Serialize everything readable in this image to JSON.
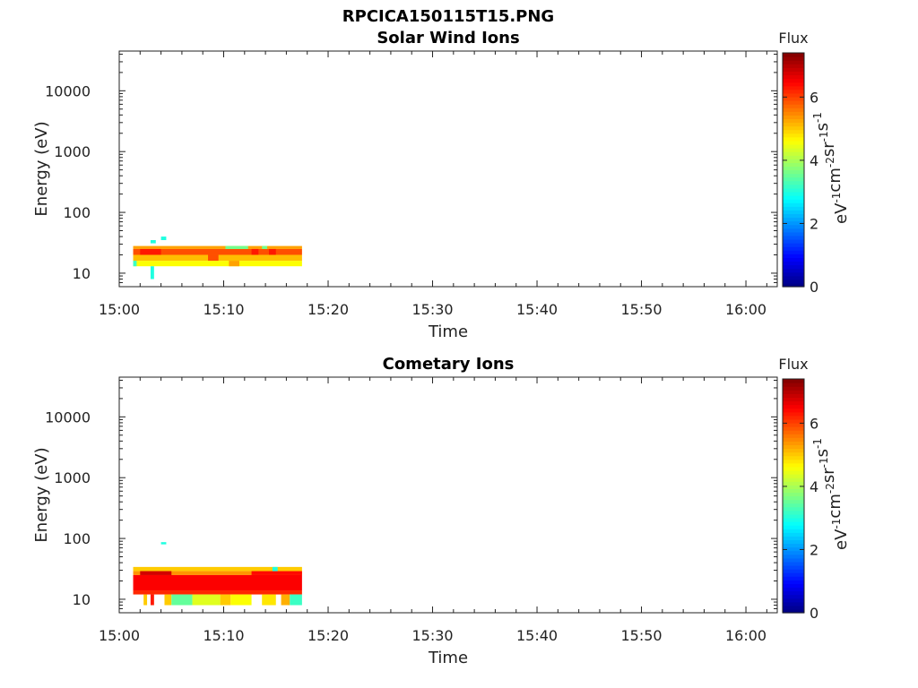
{
  "page_title": "RPCICA150115T15.PNG",
  "colorbar": {
    "title": "Flux",
    "label_parts": [
      "eV",
      "-1",
      "cm",
      "-2",
      "sr",
      "-1",
      "s",
      "-1"
    ],
    "ticks": [
      0,
      2,
      4,
      6
    ],
    "range": [
      0,
      7.4
    ],
    "colormap": "jet"
  },
  "chart_data": [
    {
      "type": "heatmap",
      "title": "Solar Wind Ions",
      "xlabel": "Time",
      "ylabel": "Energy (eV)",
      "xticks": [
        "15:00",
        "15:10",
        "15:20",
        "15:30",
        "15:40",
        "15:50",
        "16:00"
      ],
      "xlim": [
        "15:00",
        "16:03"
      ],
      "yscale": "log",
      "yticks": [
        10,
        100,
        1000,
        10000
      ],
      "ylim": [
        6,
        45000
      ],
      "cells": [
        {
          "t0": "15:01:20",
          "t1": "15:17:30",
          "e0": 25,
          "e1": 28,
          "flux": 5.3
        },
        {
          "t0": "15:01:20",
          "t1": "15:17:30",
          "e0": 20,
          "e1": 25,
          "flux": 5.9
        },
        {
          "t0": "15:01:20",
          "t1": "15:17:30",
          "e0": 16,
          "e1": 20,
          "flux": 5.1
        },
        {
          "t0": "15:01:20",
          "t1": "15:17:30",
          "e0": 13,
          "e1": 16,
          "flux": 4.6
        },
        {
          "t0": "15:02:00",
          "t1": "15:04:00",
          "e0": 20,
          "e1": 25,
          "flux": 6.3
        },
        {
          "t0": "15:03:00",
          "t1": "15:03:30",
          "e0": 31,
          "e1": 35,
          "flux": 3.0
        },
        {
          "t0": "15:04:00",
          "t1": "15:04:30",
          "e0": 35,
          "e1": 40,
          "flux": 3.0
        },
        {
          "t0": "15:03:00",
          "t1": "15:03:20",
          "e0": 8,
          "e1": 13,
          "flux": 3.0
        },
        {
          "t0": "15:01:20",
          "t1": "15:01:40",
          "e0": 13,
          "e1": 16,
          "flux": 3.2
        },
        {
          "t0": "15:10:10",
          "t1": "15:12:20",
          "e0": 25,
          "e1": 28,
          "flux": 3.6
        },
        {
          "t0": "15:12:40",
          "t1": "15:13:20",
          "e0": 20,
          "e1": 25,
          "flux": 6.3
        },
        {
          "t0": "15:13:40",
          "t1": "15:14:10",
          "e0": 25,
          "e1": 28,
          "flux": 3.6
        },
        {
          "t0": "15:14:20",
          "t1": "15:15:00",
          "e0": 20,
          "e1": 25,
          "flux": 6.3
        },
        {
          "t0": "15:08:30",
          "t1": "15:09:30",
          "e0": 16,
          "e1": 20,
          "flux": 5.9
        },
        {
          "t0": "15:10:30",
          "t1": "15:11:30",
          "e0": 13,
          "e1": 16,
          "flux": 5.3
        }
      ]
    },
    {
      "type": "heatmap",
      "title": "Cometary Ions",
      "xlabel": "Time",
      "ylabel": "Energy (eV)",
      "xticks": [
        "15:00",
        "15:10",
        "15:20",
        "15:30",
        "15:40",
        "15:50",
        "16:00"
      ],
      "xlim": [
        "15:00",
        "16:03"
      ],
      "yscale": "log",
      "yticks": [
        10,
        100,
        1000,
        10000
      ],
      "ylim": [
        6,
        45000
      ],
      "cells": [
        {
          "t0": "15:01:20",
          "t1": "15:17:30",
          "e0": 29,
          "e1": 34,
          "flux": 5.0
        },
        {
          "t0": "15:01:20",
          "t1": "15:17:30",
          "e0": 25,
          "e1": 29,
          "flux": 5.4
        },
        {
          "t0": "15:01:20",
          "t1": "15:17:30",
          "e0": 14,
          "e1": 25,
          "flux": 6.5
        },
        {
          "t0": "15:01:20",
          "t1": "15:17:30",
          "e0": 12,
          "e1": 14,
          "flux": 6.2
        },
        {
          "t0": "15:02:00",
          "t1": "15:05:00",
          "e0": 25,
          "e1": 29,
          "flux": 6.8
        },
        {
          "t0": "15:12:40",
          "t1": "15:17:30",
          "e0": 25,
          "e1": 29,
          "flux": 6.4
        },
        {
          "t0": "15:14:40",
          "t1": "15:15:10",
          "e0": 29,
          "e1": 34,
          "flux": 3.0
        },
        {
          "t0": "15:04:00",
          "t1": "15:04:30",
          "e0": 80,
          "e1": 87,
          "flux": 3.0
        },
        {
          "t0": "15:02:20",
          "t1": "15:02:40",
          "e0": 8,
          "e1": 12,
          "flux": 5.0
        },
        {
          "t0": "15:03:00",
          "t1": "15:03:20",
          "e0": 8,
          "e1": 12,
          "flux": 6.3
        },
        {
          "t0": "15:04:20",
          "t1": "15:05:00",
          "e0": 8,
          "e1": 12,
          "flux": 5.0
        },
        {
          "t0": "15:05:00",
          "t1": "15:07:00",
          "e0": 8,
          "e1": 12,
          "flux": 3.5
        },
        {
          "t0": "15:07:00",
          "t1": "15:09:40",
          "e0": 8,
          "e1": 12,
          "flux": 4.4
        },
        {
          "t0": "15:09:40",
          "t1": "15:10:40",
          "e0": 8,
          "e1": 12,
          "flux": 5.0
        },
        {
          "t0": "15:10:40",
          "t1": "15:12:40",
          "e0": 8,
          "e1": 12,
          "flux": 4.6
        },
        {
          "t0": "15:13:40",
          "t1": "15:15:00",
          "e0": 8,
          "e1": 12,
          "flux": 4.8
        },
        {
          "t0": "15:15:30",
          "t1": "15:16:20",
          "e0": 8,
          "e1": 12,
          "flux": 5.2
        },
        {
          "t0": "15:16:20",
          "t1": "15:17:30",
          "e0": 8,
          "e1": 12,
          "flux": 3.2
        }
      ]
    }
  ]
}
